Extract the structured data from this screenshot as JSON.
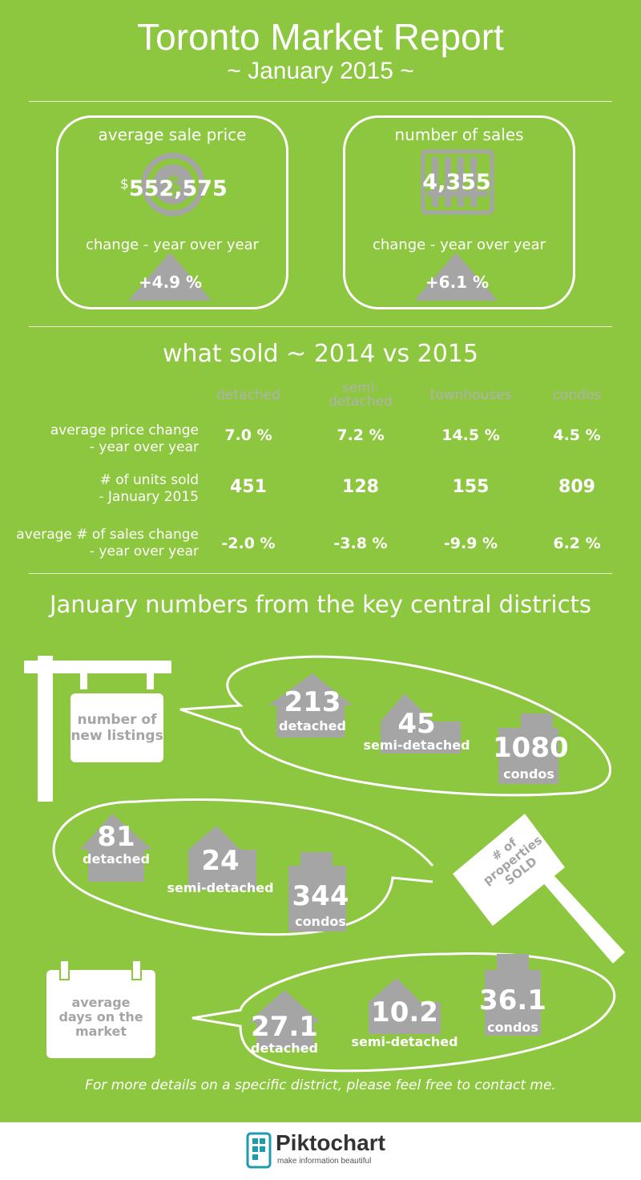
{
  "header": {
    "title": "Toronto Market Report",
    "subtitle": "~ January 2015 ~"
  },
  "avg_sale_price": {
    "label": "average sale price",
    "currency": "$",
    "value": "552,575",
    "change_label": "change - year over year",
    "change": "+4.9 %"
  },
  "num_sales": {
    "label": "number of sales",
    "value": "4,355",
    "change_label": "change - year over year",
    "change": "+6.1 %"
  },
  "what_sold": {
    "title": "what sold ~ 2014 vs 2015",
    "columns": [
      "detached",
      "semi-\ndetached",
      "townhouses",
      "condos"
    ],
    "rows": [
      {
        "label": "average price change\n- year over year",
        "values": [
          "7.0 %",
          "7.2 %",
          "14.5 %",
          "4.5 %"
        ]
      },
      {
        "label": "# of units sold\n- January 2015",
        "values": [
          "451",
          "128",
          "155",
          "809"
        ]
      },
      {
        "label": "average # of sales change\n- year over year",
        "values": [
          "-2.0 %",
          "-3.8 %",
          "-9.9 %",
          "6.2 %"
        ]
      }
    ]
  },
  "districts": {
    "title": "January numbers from the key central districts",
    "new_listings": {
      "label": "number of\nnew listings",
      "detached": "213",
      "detached_label": "detached",
      "semi": "45",
      "semi_label": "semi-detached",
      "condos": "1080",
      "condos_label": "condos"
    },
    "sold": {
      "label": "# of\nproperties\nSOLD",
      "detached": "81",
      "detached_label": "detached",
      "semi": "24",
      "semi_label": "semi-detached",
      "condos": "344",
      "condos_label": "condos"
    },
    "days": {
      "label": "average\ndays on the\nmarket",
      "detached": "27.1",
      "detached_label": "detached",
      "semi": "10.2",
      "semi_label": "semi-detached",
      "condos": "36.1",
      "condos_label": "condos"
    }
  },
  "footer": {
    "text": "For more details on a specific district, please feel free to contact me."
  },
  "brand": {
    "name": "Piktochart",
    "tagline": "make information beautiful"
  },
  "colors": {
    "background": "#8dc63f",
    "icon_gray": "#a5a5a5",
    "text_white": "#ffffff",
    "brand_teal": "#1f9bb0"
  }
}
